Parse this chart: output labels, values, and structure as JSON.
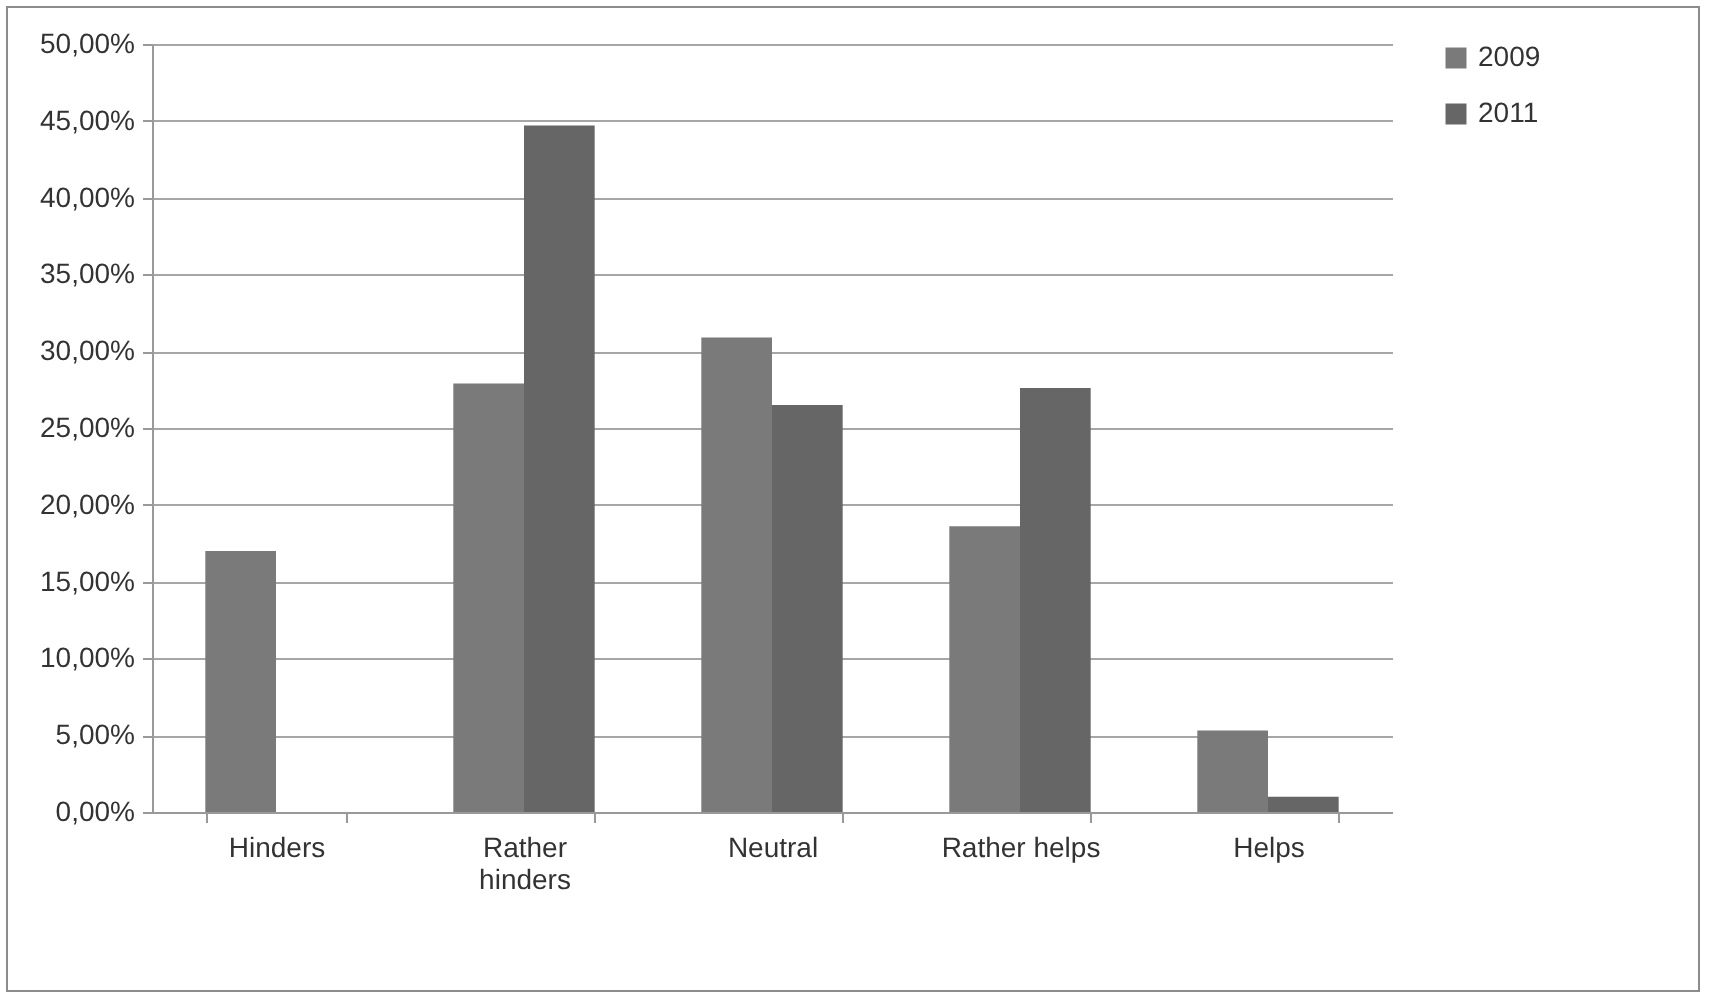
{
  "chart_data": {
    "type": "bar",
    "categories": [
      "Hinders",
      "Rather hinders",
      "Neutral",
      "Rather helps",
      "Helps"
    ],
    "series": [
      {
        "name": "2009",
        "color": "#7a7a7a",
        "values": [
          17.0,
          27.9,
          30.9,
          18.6,
          5.3
        ]
      },
      {
        "name": "2011",
        "color": "#666666",
        "values": [
          0,
          44.7,
          26.5,
          27.6,
          1.0
        ]
      }
    ],
    "ylim": [
      0,
      50
    ],
    "yticks": [
      {
        "value": 0,
        "label": "0,00%"
      },
      {
        "value": 5,
        "label": "5,00%"
      },
      {
        "value": 10,
        "label": "10,00%"
      },
      {
        "value": 15,
        "label": "15,00%"
      },
      {
        "value": 20,
        "label": "20,00%"
      },
      {
        "value": 25,
        "label": "25,00%"
      },
      {
        "value": 30,
        "label": "30,00%"
      },
      {
        "value": 35,
        "label": "35,00%"
      },
      {
        "value": 40,
        "label": "40,00%"
      },
      {
        "value": 45,
        "label": "45,00%"
      },
      {
        "value": 50,
        "label": "50,00%"
      }
    ],
    "grid": "y",
    "legend": "right"
  }
}
